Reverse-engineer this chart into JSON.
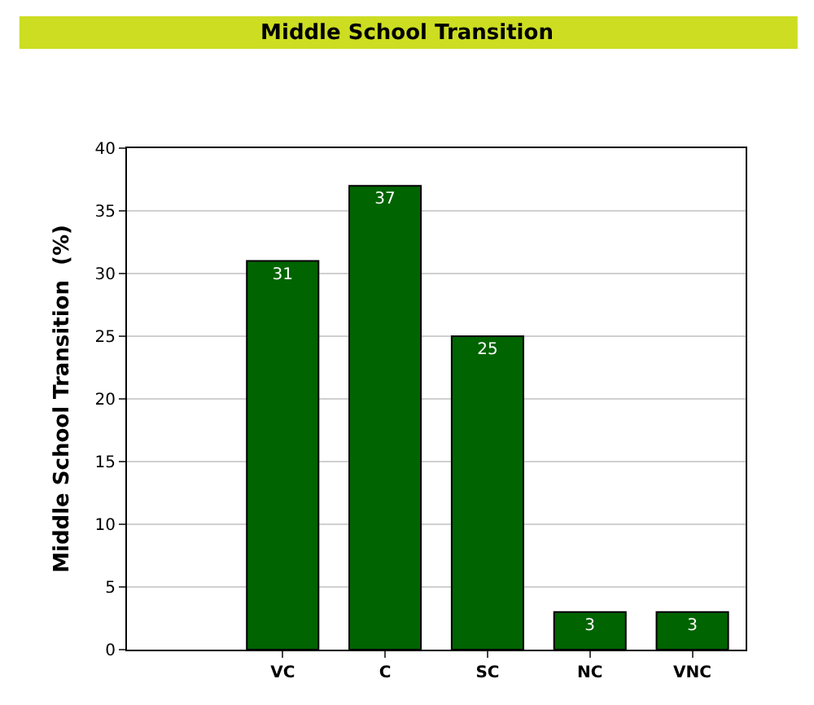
{
  "chart_data": {
    "type": "bar",
    "title": "Middle School Transition",
    "ylabel": "Middle School Transition  (%)",
    "categories": [
      "VC",
      "C",
      "SC",
      "NC",
      "VNC"
    ],
    "values": [
      31,
      37,
      25,
      3,
      3
    ],
    "color": "#006400",
    "ylim": [
      0,
      40
    ],
    "yticks": [
      0,
      5,
      10,
      15,
      20,
      25,
      30,
      35,
      40
    ],
    "grid": "y",
    "data_labels": true
  }
}
